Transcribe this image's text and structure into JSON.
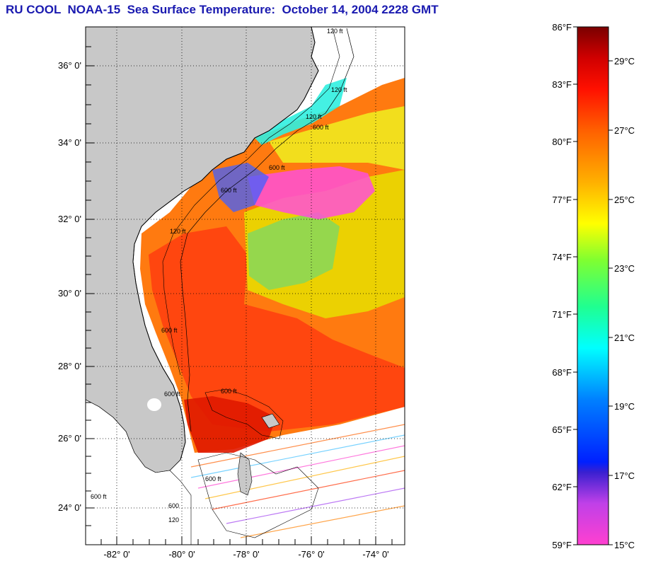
{
  "title": "RU COOL  NOAA-15  Sea Surface Temperature:  October 14, 2004 2228 GMT",
  "map": {
    "lat_labels": [
      "36° 0'",
      "34° 0'",
      "32° 0'",
      "30° 0'",
      "28° 0'",
      "26° 0'",
      "24° 0'"
    ],
    "lon_labels": [
      "-82° 0'",
      "-80° 0'",
      "-78° 0'",
      "-76° 0'",
      "-74° 0'"
    ],
    "isobath_labels": [
      "120 ft",
      "120 ft",
      "120 ft",
      "600 ft",
      "600 ft",
      "600 ft",
      "120 ft",
      "600 ft",
      "600 ft",
      "600 ft",
      "600 ft",
      "600 ft",
      "120",
      "600"
    ],
    "land_color": "#c8c8c8",
    "nodata_color": "#ffffff"
  },
  "colorbar": {
    "fahrenheit": [
      "86°F",
      "83°F",
      "80°F",
      "77°F",
      "74°F",
      "71°F",
      "68°F",
      "65°F",
      "62°F",
      "59°F"
    ],
    "celsius": [
      "29°C",
      "27°C",
      "25°C",
      "23°C",
      "21°C",
      "19°C",
      "17°C",
      "15°C"
    ],
    "stops": [
      "#ff40d0",
      "#a040f0",
      "#3020e0",
      "#0040ff",
      "#00a0ff",
      "#00ffff",
      "#40ff80",
      "#a0ff20",
      "#ffff00",
      "#ffc000",
      "#ff8000",
      "#ff3000",
      "#ff0000",
      "#c00000",
      "#800000"
    ]
  }
}
